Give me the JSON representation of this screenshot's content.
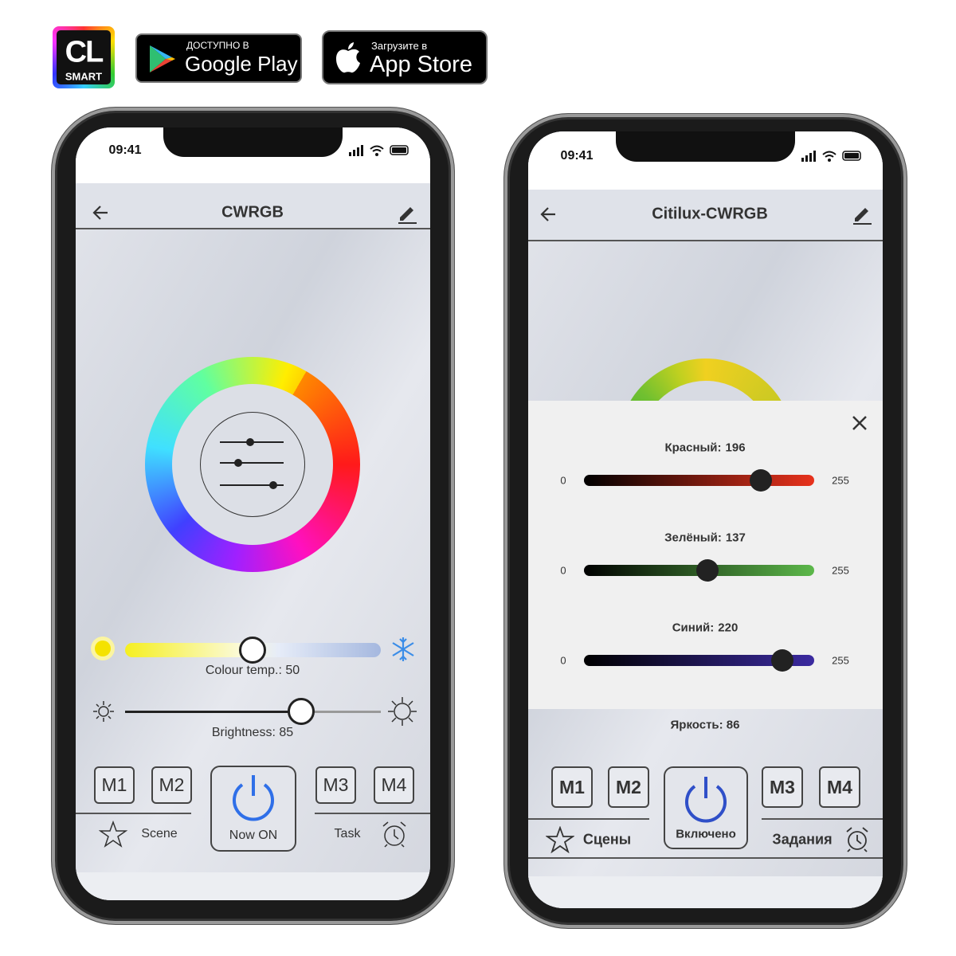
{
  "badges": {
    "logo": {
      "line1": "CL",
      "line2": "SMART"
    },
    "google_play": {
      "small": "ДОСТУПНО В",
      "big": "Google Play"
    },
    "app_store": {
      "small": "Загрузите в",
      "big": "App Store"
    }
  },
  "phones": [
    {
      "time": "09:41",
      "title": "CWRGB",
      "colour_temp": "Colour temp.: 50",
      "brightness": "Brightness: 85",
      "modes": [
        "M1",
        "M2",
        "M3",
        "M4"
      ],
      "scene": "Scene",
      "power": "Now ON",
      "task": "Task"
    },
    {
      "time": "09:41",
      "title": "Citilux-CWRGB",
      "sliders": [
        {
          "name": "Красный:",
          "value": 196,
          "min": 0,
          "max": 255
        },
        {
          "name": "Зелёный:",
          "value": 137,
          "min": 0,
          "max": 255
        },
        {
          "name": "Синий:",
          "value": 220,
          "min": 0,
          "max": 255
        }
      ],
      "brightness": "Яркость: 86",
      "modes": [
        "M1",
        "M2",
        "M3",
        "M4"
      ],
      "scene": "Сцены",
      "power": "Включено",
      "task": "Задания"
    }
  ]
}
